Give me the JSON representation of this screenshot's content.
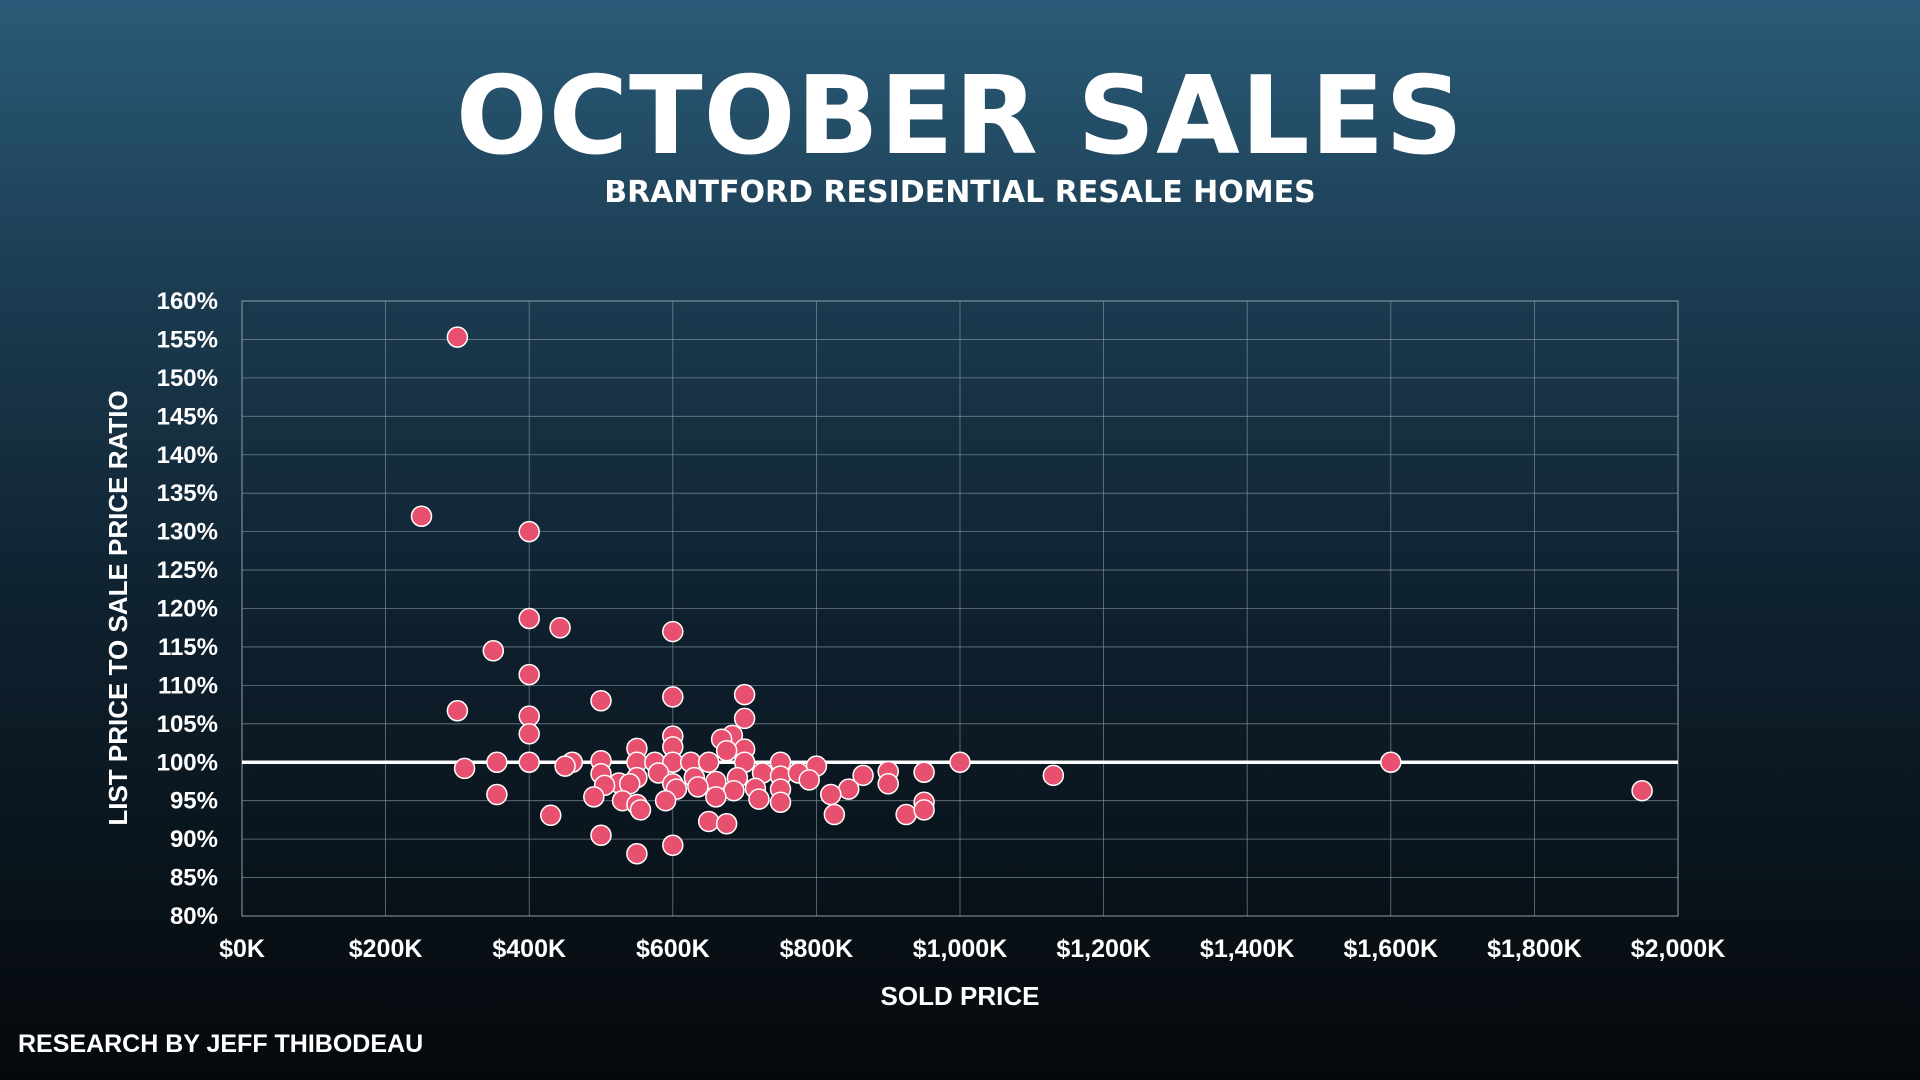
{
  "title": "OCTOBER SALES",
  "subtitle": "BRANTFORD RESIDENTIAL RESALE HOMES",
  "credit": "RESEARCH BY JEFF THIBODEAU",
  "colors": {
    "point_fill": "#e8506f",
    "point_stroke": "#ffffff",
    "grid": "#8a9aa6",
    "reference_line": "#ffffff"
  },
  "chart_data": {
    "type": "scatter",
    "xlabel": "SOLD PRICE",
    "ylabel": "LIST PRICE TO SALE PRICE RATIO",
    "xlim": [
      0,
      2000
    ],
    "ylim": [
      80,
      160
    ],
    "x_unit": "thousands of dollars",
    "y_unit": "percent",
    "grid": true,
    "reference_line_y": 100,
    "x_ticks": [
      {
        "value": 0,
        "label": "$0K"
      },
      {
        "value": 200,
        "label": "$200K"
      },
      {
        "value": 400,
        "label": "$400K"
      },
      {
        "value": 600,
        "label": "$600K"
      },
      {
        "value": 800,
        "label": "$800K"
      },
      {
        "value": 1000,
        "label": "$1,000K"
      },
      {
        "value": 1200,
        "label": "$1,200K"
      },
      {
        "value": 1400,
        "label": "$1,400K"
      },
      {
        "value": 1600,
        "label": "$1,600K"
      },
      {
        "value": 1800,
        "label": "$1,800K"
      },
      {
        "value": 2000,
        "label": "$2,000K"
      }
    ],
    "y_ticks": [
      {
        "value": 80,
        "label": "80%"
      },
      {
        "value": 85,
        "label": "85%"
      },
      {
        "value": 90,
        "label": "90%"
      },
      {
        "value": 95,
        "label": "95%"
      },
      {
        "value": 100,
        "label": "100%"
      },
      {
        "value": 105,
        "label": "105%"
      },
      {
        "value": 110,
        "label": "110%"
      },
      {
        "value": 115,
        "label": "115%"
      },
      {
        "value": 120,
        "label": "120%"
      },
      {
        "value": 125,
        "label": "125%"
      },
      {
        "value": 130,
        "label": "130%"
      },
      {
        "value": 135,
        "label": "135%"
      },
      {
        "value": 140,
        "label": "140%"
      },
      {
        "value": 145,
        "label": "145%"
      },
      {
        "value": 150,
        "label": "150%"
      },
      {
        "value": 155,
        "label": "155%"
      },
      {
        "value": 160,
        "label": "160%"
      }
    ],
    "points": [
      [
        300,
        155.3
      ],
      [
        250,
        132
      ],
      [
        400,
        130
      ],
      [
        400,
        118.7
      ],
      [
        443,
        117.5
      ],
      [
        600,
        117
      ],
      [
        350,
        114.5
      ],
      [
        400,
        111.4
      ],
      [
        600,
        108.5
      ],
      [
        700,
        108.8
      ],
      [
        500,
        108
      ],
      [
        300,
        106.7
      ],
      [
        400,
        106
      ],
      [
        700,
        105.7
      ],
      [
        400,
        103.7
      ],
      [
        600,
        103.4
      ],
      [
        683,
        103.5
      ],
      [
        668,
        103
      ],
      [
        600,
        102
      ],
      [
        550,
        101.8
      ],
      [
        700,
        101.7
      ],
      [
        675,
        101.5
      ],
      [
        355,
        100
      ],
      [
        400,
        100
      ],
      [
        460,
        100
      ],
      [
        500,
        100.2
      ],
      [
        550,
        100
      ],
      [
        575,
        100
      ],
      [
        600,
        100
      ],
      [
        625,
        100
      ],
      [
        650,
        100
      ],
      [
        700,
        100
      ],
      [
        750,
        100
      ],
      [
        800,
        99.5
      ],
      [
        1000,
        100
      ],
      [
        1600,
        100
      ],
      [
        310,
        99.2
      ],
      [
        450,
        99.5
      ],
      [
        500,
        98.5
      ],
      [
        525,
        97.3
      ],
      [
        550,
        98
      ],
      [
        580,
        98.6
      ],
      [
        600,
        97.2
      ],
      [
        630,
        98
      ],
      [
        660,
        97.5
      ],
      [
        690,
        98
      ],
      [
        725,
        98.6
      ],
      [
        750,
        98.2
      ],
      [
        775,
        98.6
      ],
      [
        790,
        97.7
      ],
      [
        865,
        98.3
      ],
      [
        900,
        98.8
      ],
      [
        950,
        98.7
      ],
      [
        1130,
        98.3
      ],
      [
        505,
        97
      ],
      [
        540,
        97.2
      ],
      [
        605,
        96.5
      ],
      [
        635,
        96.8
      ],
      [
        685,
        96.3
      ],
      [
        715,
        96.6
      ],
      [
        750,
        96.5
      ],
      [
        845,
        96.5
      ],
      [
        900,
        97.2
      ],
      [
        1950,
        96.3
      ],
      [
        355,
        95.8
      ],
      [
        490,
        95.5
      ],
      [
        530,
        95
      ],
      [
        590,
        95
      ],
      [
        660,
        95.5
      ],
      [
        720,
        95.2
      ],
      [
        750,
        94.8
      ],
      [
        820,
        95.8
      ],
      [
        950,
        94.8
      ],
      [
        550,
        94.5
      ],
      [
        555,
        93.8
      ],
      [
        430,
        93.1
      ],
      [
        825,
        93.2
      ],
      [
        925,
        93.2
      ],
      [
        950,
        93.8
      ],
      [
        650,
        92.3
      ],
      [
        675,
        92
      ],
      [
        500,
        90.5
      ],
      [
        600,
        89.2
      ],
      [
        550,
        88.1
      ]
    ]
  }
}
